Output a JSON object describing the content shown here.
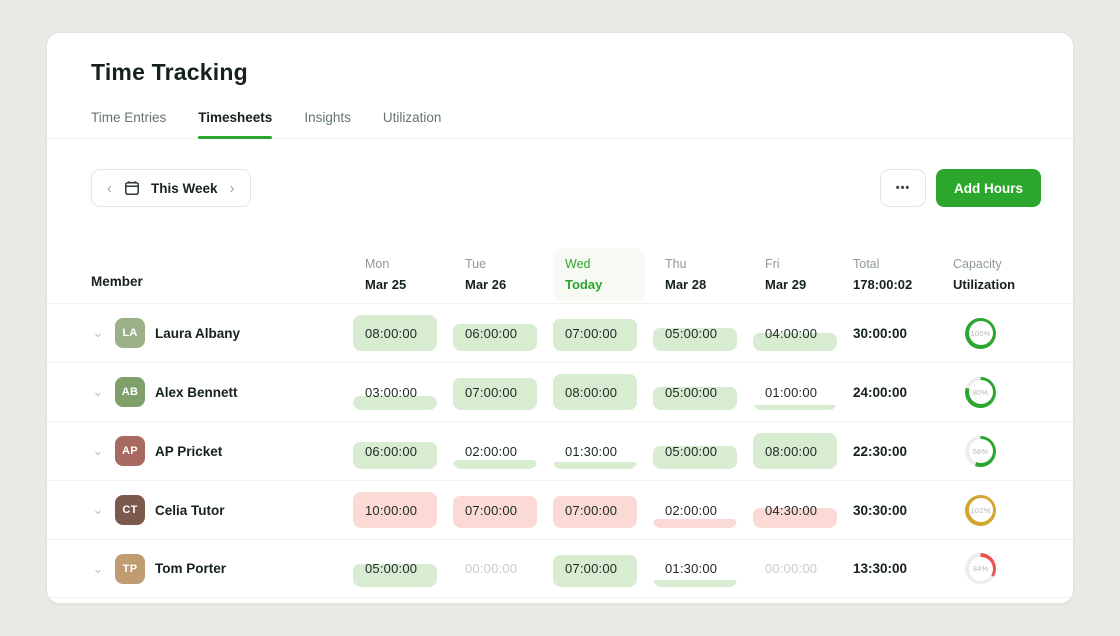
{
  "window": {
    "title": "Time Tracking"
  },
  "tabs": [
    {
      "label": "Time Entries",
      "active": false
    },
    {
      "label": "Timesheets",
      "active": true
    },
    {
      "label": "Insights",
      "active": false
    },
    {
      "label": "Utilization",
      "active": false
    }
  ],
  "toolbar": {
    "prev_icon": "‹",
    "next_icon": "›",
    "calendar_icon": "calendar-icon",
    "week_label": "This Week",
    "more_label": "•••",
    "add_hours_label": "Add Hours"
  },
  "table": {
    "member_header": "Member",
    "day_columns": [
      {
        "day": "Mon",
        "date": "Mar 25",
        "today": false
      },
      {
        "day": "Tue",
        "date": "Mar 26",
        "today": false
      },
      {
        "day": "Wed",
        "date": "Today",
        "today": true
      },
      {
        "day": "Thu",
        "date": "Mar 28",
        "today": false
      },
      {
        "day": "Fri",
        "date": "Mar 29",
        "today": false
      }
    ],
    "total_header": {
      "label": "Total",
      "value": "178:00:02"
    },
    "capacity_header": {
      "label": "Capacity",
      "value": "Utilization"
    },
    "rows": [
      {
        "name": "Laura Albany",
        "initials": "LA",
        "avatar_color": "#9ab187",
        "cells": [
          {
            "value": "08:00:00",
            "fill": 100,
            "tone": "green"
          },
          {
            "value": "06:00:00",
            "fill": 75,
            "tone": "green"
          },
          {
            "value": "07:00:00",
            "fill": 88,
            "tone": "green"
          },
          {
            "value": "05:00:00",
            "fill": 63,
            "tone": "green"
          },
          {
            "value": "04:00:00",
            "fill": 50,
            "tone": "green"
          }
        ],
        "total": "30:00:00",
        "utilization": {
          "label": "100%",
          "percent": 100,
          "tone": "green"
        }
      },
      {
        "name": "Alex Bennett",
        "initials": "AB",
        "avatar_color": "#7fa06a",
        "cells": [
          {
            "value": "03:00:00",
            "fill": 38,
            "tone": "green"
          },
          {
            "value": "07:00:00",
            "fill": 88,
            "tone": "green"
          },
          {
            "value": "08:00:00",
            "fill": 100,
            "tone": "green"
          },
          {
            "value": "05:00:00",
            "fill": 63,
            "tone": "green"
          },
          {
            "value": "01:00:00",
            "fill": 13,
            "tone": "green"
          }
        ],
        "total": "24:00:00",
        "utilization": {
          "label": "80%",
          "percent": 80,
          "tone": "green"
        }
      },
      {
        "name": "AP Pricket",
        "initials": "AP",
        "avatar_color": "#a86a60",
        "cells": [
          {
            "value": "06:00:00",
            "fill": 75,
            "tone": "green"
          },
          {
            "value": "02:00:00",
            "fill": 25,
            "tone": "green"
          },
          {
            "value": "01:30:00",
            "fill": 19,
            "tone": "green"
          },
          {
            "value": "05:00:00",
            "fill": 63,
            "tone": "green"
          },
          {
            "value": "08:00:00",
            "fill": 100,
            "tone": "green"
          }
        ],
        "total": "22:30:00",
        "utilization": {
          "label": "56%",
          "percent": 56,
          "tone": "green"
        }
      },
      {
        "name": "Celia Tutor",
        "initials": "CT",
        "avatar_color": "#7c594d",
        "cells": [
          {
            "value": "10:00:00",
            "fill": 100,
            "tone": "red"
          },
          {
            "value": "07:00:00",
            "fill": 88,
            "tone": "red"
          },
          {
            "value": "07:00:00",
            "fill": 88,
            "tone": "red"
          },
          {
            "value": "02:00:00",
            "fill": 25,
            "tone": "red"
          },
          {
            "value": "04:30:00",
            "fill": 56,
            "tone": "red"
          }
        ],
        "total": "30:30:00",
        "utilization": {
          "label": "102%",
          "percent": 100,
          "tone": "gold"
        }
      },
      {
        "name": "Tom Porter",
        "initials": "TP",
        "avatar_color": "#c09c72",
        "cells": [
          {
            "value": "05:00:00",
            "fill": 63,
            "tone": "green"
          },
          {
            "value": "00:00:00",
            "fill": 0,
            "tone": "empty"
          },
          {
            "value": "07:00:00",
            "fill": 88,
            "tone": "green"
          },
          {
            "value": "01:30:00",
            "fill": 19,
            "tone": "green"
          },
          {
            "value": "00:00:00",
            "fill": 0,
            "tone": "empty"
          }
        ],
        "total": "13:30:00",
        "utilization": {
          "label": "34%",
          "percent": 34,
          "tone": "red"
        }
      }
    ]
  },
  "colors": {
    "accent_green": "#2aa72c",
    "cell_green": "#d7ecd0",
    "cell_red": "#fbd9d5",
    "ring_green": "#2ca62e",
    "ring_gold": "#d2a62f",
    "ring_red": "#e9544e",
    "ring_track": "#ebeeea",
    "today_bg": "#f6faf3"
  }
}
